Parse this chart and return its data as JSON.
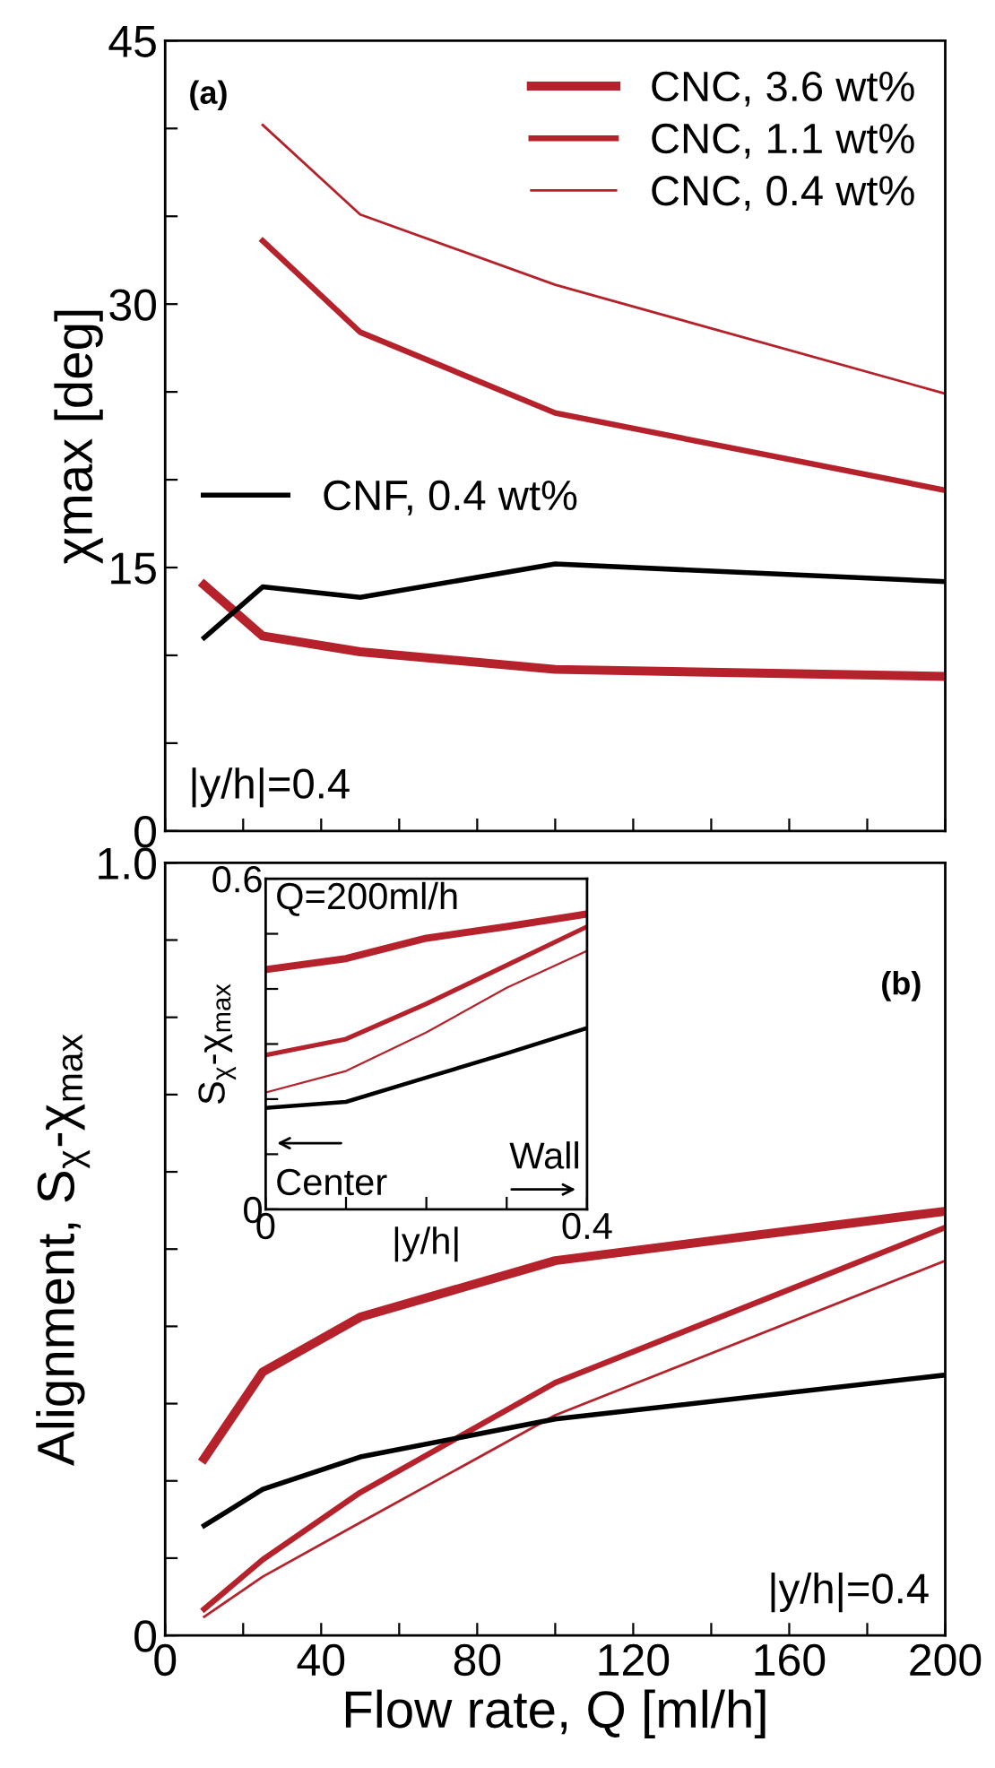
{
  "chart_data": [
    {
      "type": "line",
      "ylabel": "χmax [deg]",
      "x": [
        10,
        25,
        50,
        100,
        200
      ],
      "xlim": [
        0,
        200
      ],
      "xticks": [
        {
          "value": 0,
          "label": null
        },
        {
          "value": 20,
          "label": null
        },
        {
          "value": 40,
          "label": null
        },
        {
          "value": 60,
          "label": null
        },
        {
          "value": 80,
          "label": null
        },
        {
          "value": 100,
          "label": null
        },
        {
          "value": 120,
          "label": null
        },
        {
          "value": 140,
          "label": null
        },
        {
          "value": 160,
          "label": null
        },
        {
          "value": 180,
          "label": null
        },
        {
          "value": 200,
          "label": null
        }
      ],
      "ylim": [
        0,
        45
      ],
      "yticks": [
        0,
        {
          "value": 5,
          "label": null
        },
        {
          "value": 10,
          "label": null
        },
        15,
        {
          "value": 20,
          "label": null
        },
        {
          "value": 25,
          "label": null
        },
        30,
        {
          "value": 35,
          "label": null
        },
        {
          "value": 40,
          "label": null
        },
        45
      ],
      "tick_labels": "y",
      "legend": "top right",
      "grid": false,
      "annotations": [
        "(a)",
        "|y/h|=0.4"
      ],
      "series": [
        {
          "name": "CNC, 3.6 wt%",
          "color": "#b5222b",
          "values": [
            14.0,
            11.1,
            10.2,
            9.2,
            8.8
          ]
        },
        {
          "name": "CNC, 1.1 wt%",
          "color": "#b5222b",
          "values": [
            null,
            33.6,
            28.4,
            23.8,
            19.4
          ]
        },
        {
          "name": "CNC, 0.4 wt%",
          "color": "#b5222b",
          "values": [
            null,
            40.2,
            35.1,
            31.1,
            24.9
          ]
        },
        {
          "name": "CNF, 0.4 wt%",
          "color": "#000000",
          "values": [
            11.0,
            13.9,
            13.3,
            15.2,
            14.2
          ]
        }
      ]
    },
    {
      "type": "line",
      "ylabel": "Alignment, S$_{χ}$-χ$_{max}$",
      "xlabel": "Flow rate, Q [ml/h]",
      "x": [
        10,
        25,
        50,
        100,
        200
      ],
      "xlim": [
        0,
        200
      ],
      "xticks": [
        0,
        {
          "value": 20,
          "label": null
        },
        40,
        {
          "value": 60,
          "label": null
        },
        80,
        {
          "value": 100,
          "label": null
        },
        120,
        {
          "value": 140,
          "label": null
        },
        160,
        {
          "value": 180,
          "label": null
        },
        200
      ],
      "ylim": [
        0,
        1.0
      ],
      "yticks": [
        0,
        {
          "value": 0.1,
          "label": null
        },
        {
          "value": 0.2,
          "label": null
        },
        {
          "value": 0.3,
          "label": null
        },
        {
          "value": 0.4,
          "label": null
        },
        {
          "value": 0.5,
          "label": null
        },
        {
          "value": 0.6,
          "label": null
        },
        {
          "value": 0.7,
          "label": null
        },
        {
          "value": 0.8,
          "label": null
        },
        {
          "value": 0.9,
          "label": null
        },
        {
          "value": 1.0,
          "label": "1.0"
        }
      ],
      "grid": false,
      "annotations": [
        "(b)",
        "|y/h|=0.4"
      ],
      "series": [
        {
          "color": "#b5222b",
          "values": [
            0.229,
            0.341,
            0.412,
            0.485,
            0.549
          ]
        },
        {
          "color": "#b5222b",
          "values": [
            0.034,
            0.098,
            0.185,
            0.327,
            0.528
          ]
        },
        {
          "color": "#b5222b",
          "values": [
            0.024,
            0.076,
            0.146,
            0.285,
            0.485
          ]
        },
        {
          "color": "#000000",
          "values": [
            0.142,
            0.189,
            0.231,
            0.28,
            0.337
          ]
        }
      ]
    },
    {
      "type": "line",
      "ylabel": "S$_{χ}$-χ$_{max}$",
      "xlabel": "|y/h|",
      "x": [
        0,
        0.1,
        0.2,
        0.3,
        0.4
      ],
      "xlim": [
        0,
        0.4
      ],
      "xticks": [
        0,
        {
          "value": 0.1,
          "label": null
        },
        {
          "value": 0.2,
          "label": null
        },
        {
          "value": 0.3,
          "label": null
        },
        0.4
      ],
      "ylim": [
        0,
        0.6
      ],
      "yticks": [
        0,
        {
          "value": 0.1,
          "label": null
        },
        {
          "value": 0.2,
          "label": null
        },
        {
          "value": 0.3,
          "label": null
        },
        {
          "value": 0.4,
          "label": null
        },
        {
          "value": 0.5,
          "label": null
        },
        0.6
      ],
      "grid": false,
      "annotations": [
        "Q=200ml/h",
        "Center",
        "Wall"
      ],
      "series": [
        {
          "color": "#b5222b",
          "values": [
            0.435,
            0.455,
            0.492,
            0.513,
            0.536
          ]
        },
        {
          "color": "#b5222b",
          "values": [
            0.28,
            0.309,
            0.373,
            0.443,
            0.513
          ]
        },
        {
          "color": "#b5222b",
          "values": [
            0.212,
            0.251,
            0.321,
            0.402,
            0.469
          ]
        },
        {
          "color": "#000000",
          "values": [
            0.184,
            0.195,
            0.239,
            0.283,
            0.329
          ]
        }
      ]
    }
  ]
}
